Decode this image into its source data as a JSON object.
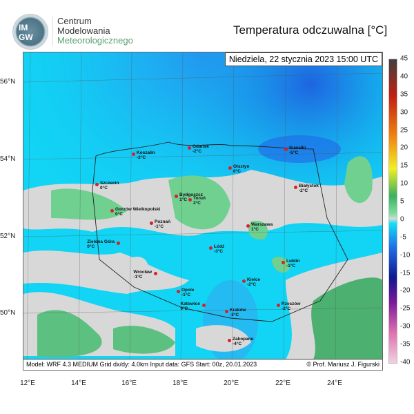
{
  "header": {
    "logo_text": "IMGW",
    "org_lines": [
      "Centrum",
      "Modelowania",
      "Meteorologicznego"
    ],
    "title": "Temperatura odczuwalna [°C]"
  },
  "map": {
    "datetime": "Niedziela, 22 stycznia 2023 15:00 UTC",
    "footer_left": "Model: WRF 4.3 MEDIUM   Grid dx/dy: 4.0km   Input data: GFS   Start: 00z, 20.01.2023",
    "footer_right": "© Prof. Mariusz J. Figurski",
    "lat_labels": [
      "56°N",
      "54°N",
      "52°N",
      "50°N"
    ],
    "lon_labels": [
      "12°E",
      "14°E",
      "16°E",
      "18°E",
      "20°E",
      "22°E",
      "24°E"
    ],
    "cities": [
      {
        "name": "Szczecin",
        "temp": "0°C"
      },
      {
        "name": "Koszalin",
        "temp": "-2°C"
      },
      {
        "name": "Gdańsk",
        "temp": "-2°C"
      },
      {
        "name": "Suwałki",
        "temp": "-5°C"
      },
      {
        "name": "Olsztyn",
        "temp": "0°C"
      },
      {
        "name": "Białystok",
        "temp": "-2°C"
      },
      {
        "name": "Bydgoszcz",
        "temp": "1°C"
      },
      {
        "name": "Toruń",
        "temp": "2°C"
      },
      {
        "name": "Gorzów Wielkopolski",
        "temp": "0°C"
      },
      {
        "name": "Poznań",
        "temp": "-1°C"
      },
      {
        "name": "Warszawa",
        "temp": "1°C"
      },
      {
        "name": "Zielona Góra",
        "temp": "0°C"
      },
      {
        "name": "Łódź",
        "temp": "-3°C"
      },
      {
        "name": "Lublin",
        "temp": "-1°C"
      },
      {
        "name": "Wrocław",
        "temp": "-1°C"
      },
      {
        "name": "Kielce",
        "temp": "-2°C"
      },
      {
        "name": "Opole",
        "temp": "-1°C"
      },
      {
        "name": "Katowice",
        "temp": "0°C"
      },
      {
        "name": "Rzeszów",
        "temp": "-2°C"
      },
      {
        "name": "Kraków",
        "temp": "-3°C"
      },
      {
        "name": "Zakopane",
        "temp": "-4°C"
      }
    ]
  },
  "colorbar": {
    "labels": [
      "45",
      "40",
      "35",
      "30",
      "25",
      "20",
      "15",
      "10",
      "5",
      "0",
      "-5",
      "-10",
      "-15",
      "-20",
      "-25",
      "-30",
      "-35",
      "-40"
    ],
    "colors": {
      "cold_max": "#f0d0e0",
      "purple": "#7a1a9a",
      "navy": "#101890",
      "blue": "#1e6ee8",
      "cyan": "#10e0f8",
      "grey": "#d8d8d8",
      "green": "#3cb060",
      "yellow": "#f0f020",
      "orange": "#f08010",
      "red": "#c02010",
      "dark": "#404040"
    }
  }
}
